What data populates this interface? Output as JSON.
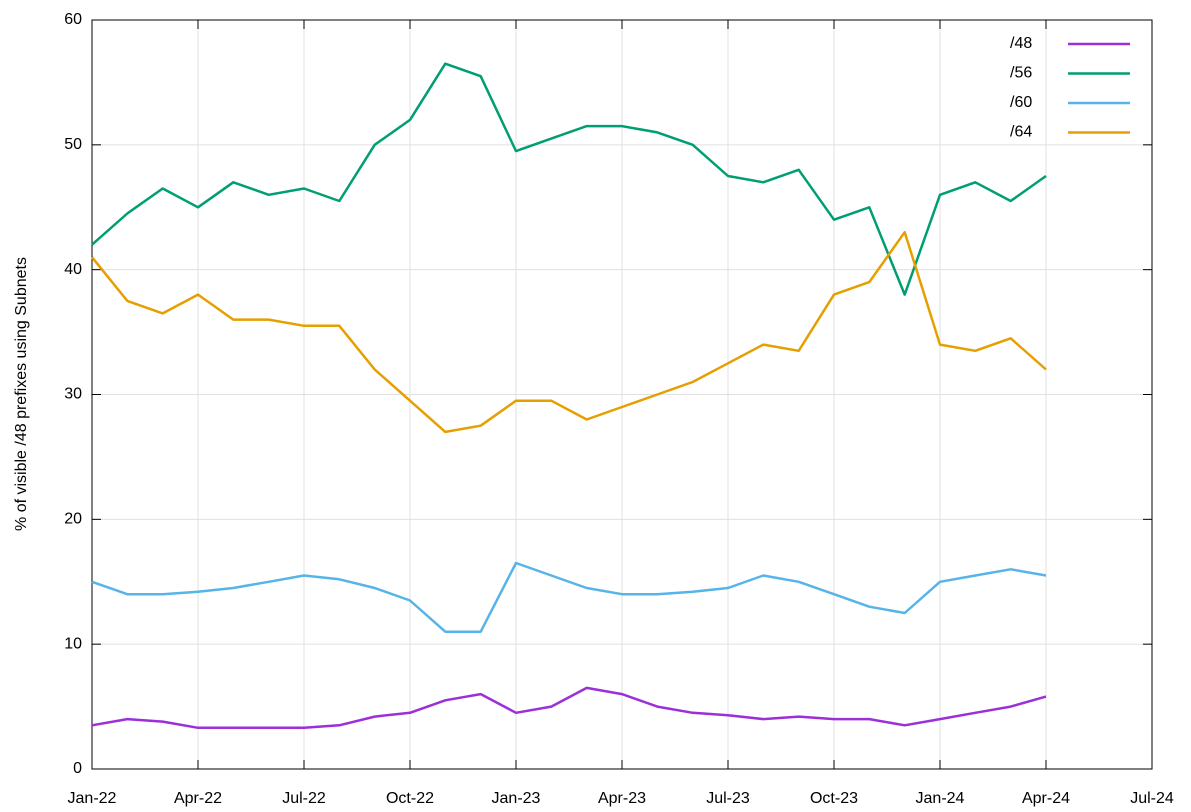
{
  "chart_data": {
    "type": "line",
    "ylabel": "% of visible /48 prefixes using Subnets",
    "x": [
      "2022-01",
      "2022-02",
      "2022-03",
      "2022-04",
      "2022-05",
      "2022-06",
      "2022-07",
      "2022-08",
      "2022-09",
      "2022-10",
      "2022-11",
      "2022-12",
      "2023-01",
      "2023-02",
      "2023-03",
      "2023-04",
      "2023-05",
      "2023-06",
      "2023-07",
      "2023-08",
      "2023-09",
      "2023-10",
      "2023-11",
      "2023-12",
      "2024-01",
      "2024-02",
      "2024-03",
      "2024-04"
    ],
    "xlim": [
      "2022-01",
      "2024-07"
    ],
    "xticks": [
      {
        "value": "2022-01",
        "label": "Jan-22"
      },
      {
        "value": "2022-04",
        "label": "Apr-22"
      },
      {
        "value": "2022-07",
        "label": "Jul-22"
      },
      {
        "value": "2022-10",
        "label": "Oct-22"
      },
      {
        "value": "2023-01",
        "label": "Jan-23"
      },
      {
        "value": "2023-04",
        "label": "Apr-23"
      },
      {
        "value": "2023-07",
        "label": "Jul-23"
      },
      {
        "value": "2023-10",
        "label": "Oct-23"
      },
      {
        "value": "2024-01",
        "label": "Jan-24"
      },
      {
        "value": "2024-04",
        "label": "Apr-24"
      },
      {
        "value": "2024-07",
        "label": "Jul-24"
      }
    ],
    "ylim": [
      0,
      60
    ],
    "yticks": [
      0,
      10,
      20,
      30,
      40,
      50,
      60
    ],
    "grid": true,
    "legend": "top-right",
    "series": [
      {
        "name": "/48",
        "color": "#9b30d9",
        "values": [
          3.5,
          4,
          3.8,
          3.3,
          3.3,
          3.3,
          3.3,
          3.5,
          4.2,
          4.5,
          5.5,
          6,
          4.5,
          5,
          6.5,
          6,
          5,
          4.5,
          4.3,
          4,
          4.2,
          4,
          4,
          3.5,
          4,
          4.5,
          5,
          5.8
        ]
      },
      {
        "name": "/56",
        "color": "#009e73",
        "values": [
          42,
          44.5,
          46.5,
          45,
          47,
          46,
          46.5,
          45.5,
          50,
          52,
          56.5,
          55.5,
          49.5,
          50.5,
          51.5,
          51.5,
          51,
          50,
          47.5,
          47,
          48,
          44,
          45,
          38,
          46,
          47,
          45.5,
          47.5
        ]
      },
      {
        "name": "/60",
        "color": "#56b4e9",
        "values": [
          15,
          14,
          14,
          14.2,
          14.5,
          15,
          15.5,
          15.2,
          14.5,
          13.5,
          11,
          11,
          16.5,
          15.5,
          14.5,
          14,
          14,
          14.2,
          14.5,
          15.5,
          15,
          14,
          13,
          12.5,
          15,
          15.5,
          16,
          15.5
        ]
      },
      {
        "name": "/64",
        "color": "#e69f00",
        "values": [
          41,
          37.5,
          36.5,
          38,
          36,
          36,
          35.5,
          35.5,
          32,
          29.5,
          27,
          27.5,
          29.5,
          29.5,
          28,
          29,
          30,
          31,
          32.5,
          34,
          33.5,
          38,
          39,
          43,
          34,
          33.5,
          34.5,
          32
        ]
      }
    ]
  }
}
